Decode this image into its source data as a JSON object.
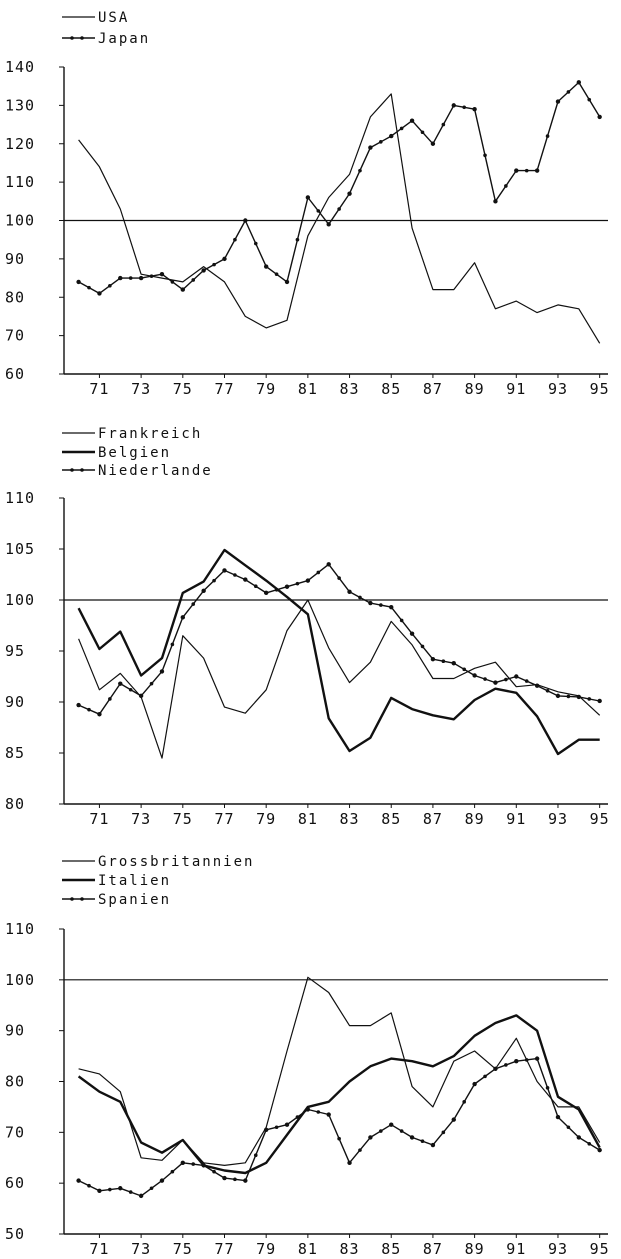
{
  "chart_data": [
    {
      "type": "line",
      "x": [
        70,
        71,
        72,
        73,
        74,
        75,
        76,
        77,
        78,
        79,
        80,
        81,
        82,
        83,
        84,
        85,
        86,
        87,
        88,
        89,
        90,
        91,
        92,
        93,
        94,
        95
      ],
      "x_tick_labels": [
        "71",
        "73",
        "75",
        "77",
        "79",
        "81",
        "83",
        "85",
        "87",
        "89",
        "91",
        "93",
        "95"
      ],
      "y_tick_labels": [
        "60",
        "70",
        "80",
        "90",
        "100",
        "110",
        "120",
        "130",
        "140"
      ],
      "ylim": [
        60,
        140
      ],
      "xlim": [
        69.3,
        95.4
      ],
      "reference_line": 100,
      "legend_position": "top-left",
      "series": [
        {
          "name": "USA",
          "marker": "none",
          "stroke_width": 1.2,
          "values": [
            121,
            114,
            103,
            86,
            85,
            84,
            88,
            84,
            75,
            72,
            74,
            96,
            106,
            112,
            127,
            133,
            98,
            82,
            82,
            89,
            77,
            79,
            76,
            78,
            77,
            68
          ]
        },
        {
          "name": "Japan",
          "marker": "dot",
          "stroke_width": 1.4,
          "values": [
            84,
            81,
            85,
            85,
            86,
            82,
            87,
            90,
            100,
            88,
            84,
            106,
            99,
            107,
            119,
            122,
            126,
            120,
            130,
            129,
            105,
            113,
            113,
            131,
            136,
            127
          ]
        }
      ]
    },
    {
      "type": "line",
      "x": [
        70,
        71,
        72,
        73,
        74,
        75,
        76,
        77,
        78,
        79,
        80,
        81,
        82,
        83,
        84,
        85,
        86,
        87,
        88,
        89,
        90,
        91,
        92,
        93,
        94,
        95
      ],
      "x_tick_labels": [
        "71",
        "73",
        "75",
        "77",
        "79",
        "81",
        "83",
        "85",
        "87",
        "89",
        "91",
        "93",
        "95"
      ],
      "y_tick_labels": [
        "80",
        "85",
        "90",
        "95",
        "100",
        "105",
        "110"
      ],
      "ylim": [
        80,
        110
      ],
      "xlim": [
        69.3,
        95.4
      ],
      "reference_line": 100,
      "legend_position": "top-left",
      "series": [
        {
          "name": "Frankreich",
          "marker": "none",
          "stroke_width": 1.2,
          "values": [
            96.2,
            91.2,
            92.8,
            90.5,
            84.5,
            96.5,
            94.3,
            89.5,
            88.9,
            91.2,
            97,
            100,
            95.3,
            91.9,
            93.9,
            97.9,
            95.6,
            92.3,
            92.3,
            93.3,
            93.9,
            91.5,
            91.7,
            91,
            90.6,
            88.7
          ]
        },
        {
          "name": "Belgien",
          "marker": "none",
          "stroke_width": 2.4,
          "values": [
            99.2,
            95.2,
            96.9,
            92.6,
            94.3,
            100.7,
            101.8,
            104.9,
            103.4,
            101.9,
            100.3,
            98.6,
            88.4,
            85.2,
            86.5,
            90.4,
            89.3,
            88.7,
            88.3,
            90.2,
            91.3,
            90.9,
            88.6,
            84.9,
            86.3,
            86.3
          ]
        },
        {
          "name": "Niederlande",
          "marker": "dot",
          "stroke_width": 1.4,
          "values": [
            89.7,
            88.8,
            91.8,
            90.6,
            93,
            98.3,
            100.9,
            102.9,
            102,
            100.7,
            101.3,
            101.9,
            103.5,
            100.8,
            99.7,
            99.3,
            96.7,
            94.2,
            93.8,
            92.6,
            91.9,
            92.5,
            91.6,
            90.6,
            90.5,
            90.1
          ]
        }
      ]
    },
    {
      "type": "line",
      "x": [
        70,
        71,
        72,
        73,
        74,
        75,
        76,
        77,
        78,
        79,
        80,
        81,
        82,
        83,
        84,
        85,
        86,
        87,
        88,
        89,
        90,
        91,
        92,
        93,
        94,
        95
      ],
      "x_tick_labels": [
        "71",
        "73",
        "75",
        "77",
        "79",
        "81",
        "83",
        "85",
        "87",
        "89",
        "91",
        "93",
        "95"
      ],
      "y_tick_labels": [
        "50",
        "60",
        "70",
        "80",
        "90",
        "100",
        "110"
      ],
      "ylim": [
        50,
        110
      ],
      "xlim": [
        69.3,
        95.4
      ],
      "reference_line": 100,
      "legend_position": "top-left",
      "series": [
        {
          "name": "Grossbritannien",
          "marker": "none",
          "stroke_width": 1.2,
          "values": [
            82.5,
            81.5,
            78,
            65,
            64.5,
            68.5,
            64,
            63.5,
            64,
            71,
            86,
            100.5,
            97.5,
            91,
            91,
            93.5,
            79,
            75,
            84,
            86,
            82.5,
            88.5,
            80,
            75,
            75,
            68
          ]
        },
        {
          "name": "Italien",
          "marker": "none",
          "stroke_width": 2.4,
          "values": [
            81,
            78,
            76,
            68,
            66,
            68.5,
            63.5,
            62.5,
            62,
            64,
            69.5,
            75,
            76,
            80,
            83,
            84.5,
            84,
            83,
            85,
            89,
            91.5,
            93,
            90,
            77,
            74.5,
            67
          ]
        },
        {
          "name": "Spanien",
          "marker": "dot",
          "stroke_width": 1.4,
          "values": [
            60.5,
            58.5,
            59,
            57.5,
            60.5,
            64,
            63.5,
            61,
            60.5,
            70.5,
            71.5,
            74.5,
            73.5,
            64,
            69,
            71.5,
            69,
            67.5,
            72.5,
            79.5,
            82.5,
            84,
            84.5,
            73,
            69,
            66.5
          ]
        }
      ]
    }
  ]
}
